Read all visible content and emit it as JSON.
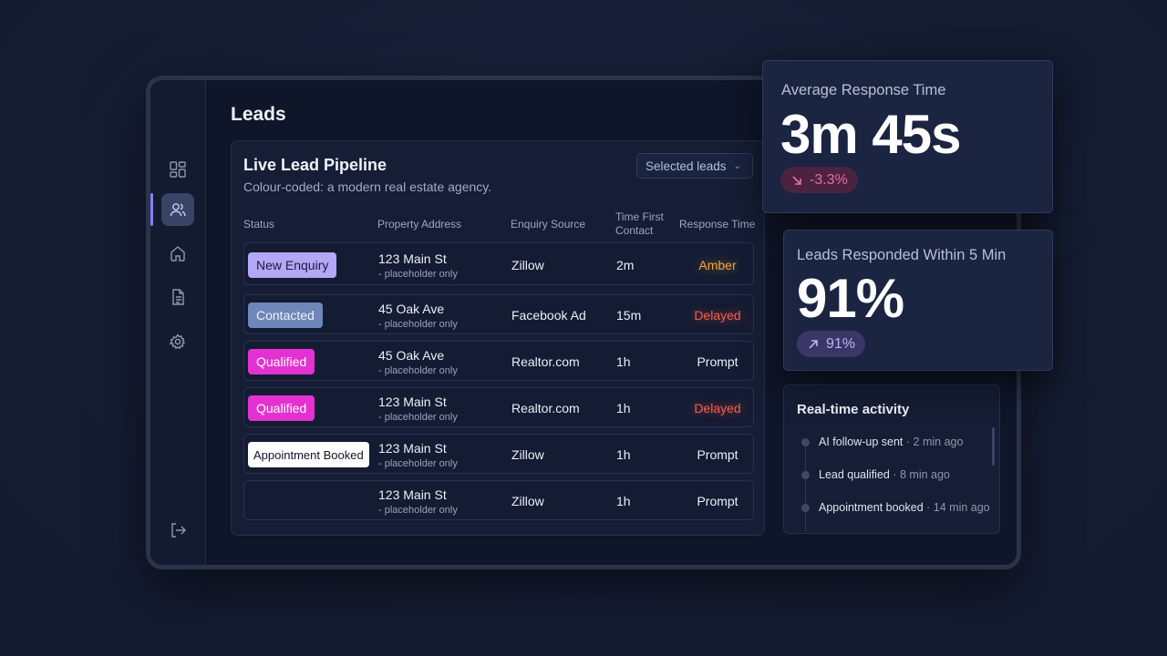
{
  "page": {
    "title": "Leads"
  },
  "sidebar": {
    "items": [
      {
        "icon": "dashboard-icon",
        "active": false
      },
      {
        "icon": "users-icon",
        "active": true
      },
      {
        "icon": "home-icon",
        "active": false
      },
      {
        "icon": "document-icon",
        "active": false
      },
      {
        "icon": "gear-icon",
        "active": false
      }
    ],
    "logout_icon": "logout-icon"
  },
  "pipeline": {
    "title": "Live Lead Pipeline",
    "subtitle": "Colour-coded: a modern real estate agency.",
    "dropdown": {
      "label": "Selected leads"
    },
    "columns": {
      "status": "Status",
      "address": "Property Address",
      "source": "Enquiry Source",
      "time_first_contact_1": "Time First",
      "time_first_contact_2": "Contact",
      "response": "Response Time"
    },
    "rows": [
      {
        "status": "New Enquiry",
        "address": "123 Main St",
        "address_note": "- placeholder only",
        "source": "Zillow",
        "time": "2m",
        "response": "Amber"
      },
      {
        "status": "Contacted",
        "address": "45 Oak Ave",
        "address_note": "- placeholder only",
        "source": "Facebook Ad",
        "time": "15m",
        "response": "Delayed"
      },
      {
        "status": "Qualified",
        "address": "45 Oak Ave",
        "address_note": "- placeholder only",
        "source": "Realtor.com",
        "time": "1h",
        "response": "Prompt"
      },
      {
        "status": "Qualified",
        "address": "123 Main St",
        "address_note": "- placeholder only",
        "source": "Realtor.com",
        "time": "1h",
        "response": "Delayed"
      },
      {
        "status": "Appointment Booked",
        "address": "123 Main St",
        "address_note": "- placeholder only",
        "source": "Zillow",
        "time": "1h",
        "response": "Prompt"
      },
      {
        "status": "",
        "address": "123 Main St",
        "address_note": "- placeholder only",
        "source": "Zillow",
        "time": "1h",
        "response": "Prompt"
      }
    ]
  },
  "colors": {
    "new_enquiry": "#b4a7f5",
    "contacted": "#6f86b8",
    "qualified": "#e332d1",
    "appointment_booked": "#ffffff",
    "amber": "#f0a43a",
    "delayed": "#f0604a",
    "negative_pill": "#4a2340",
    "positive_pill": "#3a3766"
  },
  "metrics": {
    "avg_response": {
      "label": "Average Response Time",
      "value": "3m 45s",
      "change": "-3.3%",
      "change_icon": "arrow-down-right-icon"
    },
    "within_5_min": {
      "label": "Leads Responded Within 5 Min",
      "value": "91%",
      "change": "91%",
      "change_icon": "arrow-up-right-icon"
    }
  },
  "activity": {
    "title": "Real-time activity",
    "items": [
      {
        "text": "AI follow-up sent",
        "time": "· 2 min ago"
      },
      {
        "text": "Lead qualified",
        "time": "· 8 min ago"
      },
      {
        "text": "Appointment booked",
        "time": "· 14 min ago"
      }
    ]
  }
}
